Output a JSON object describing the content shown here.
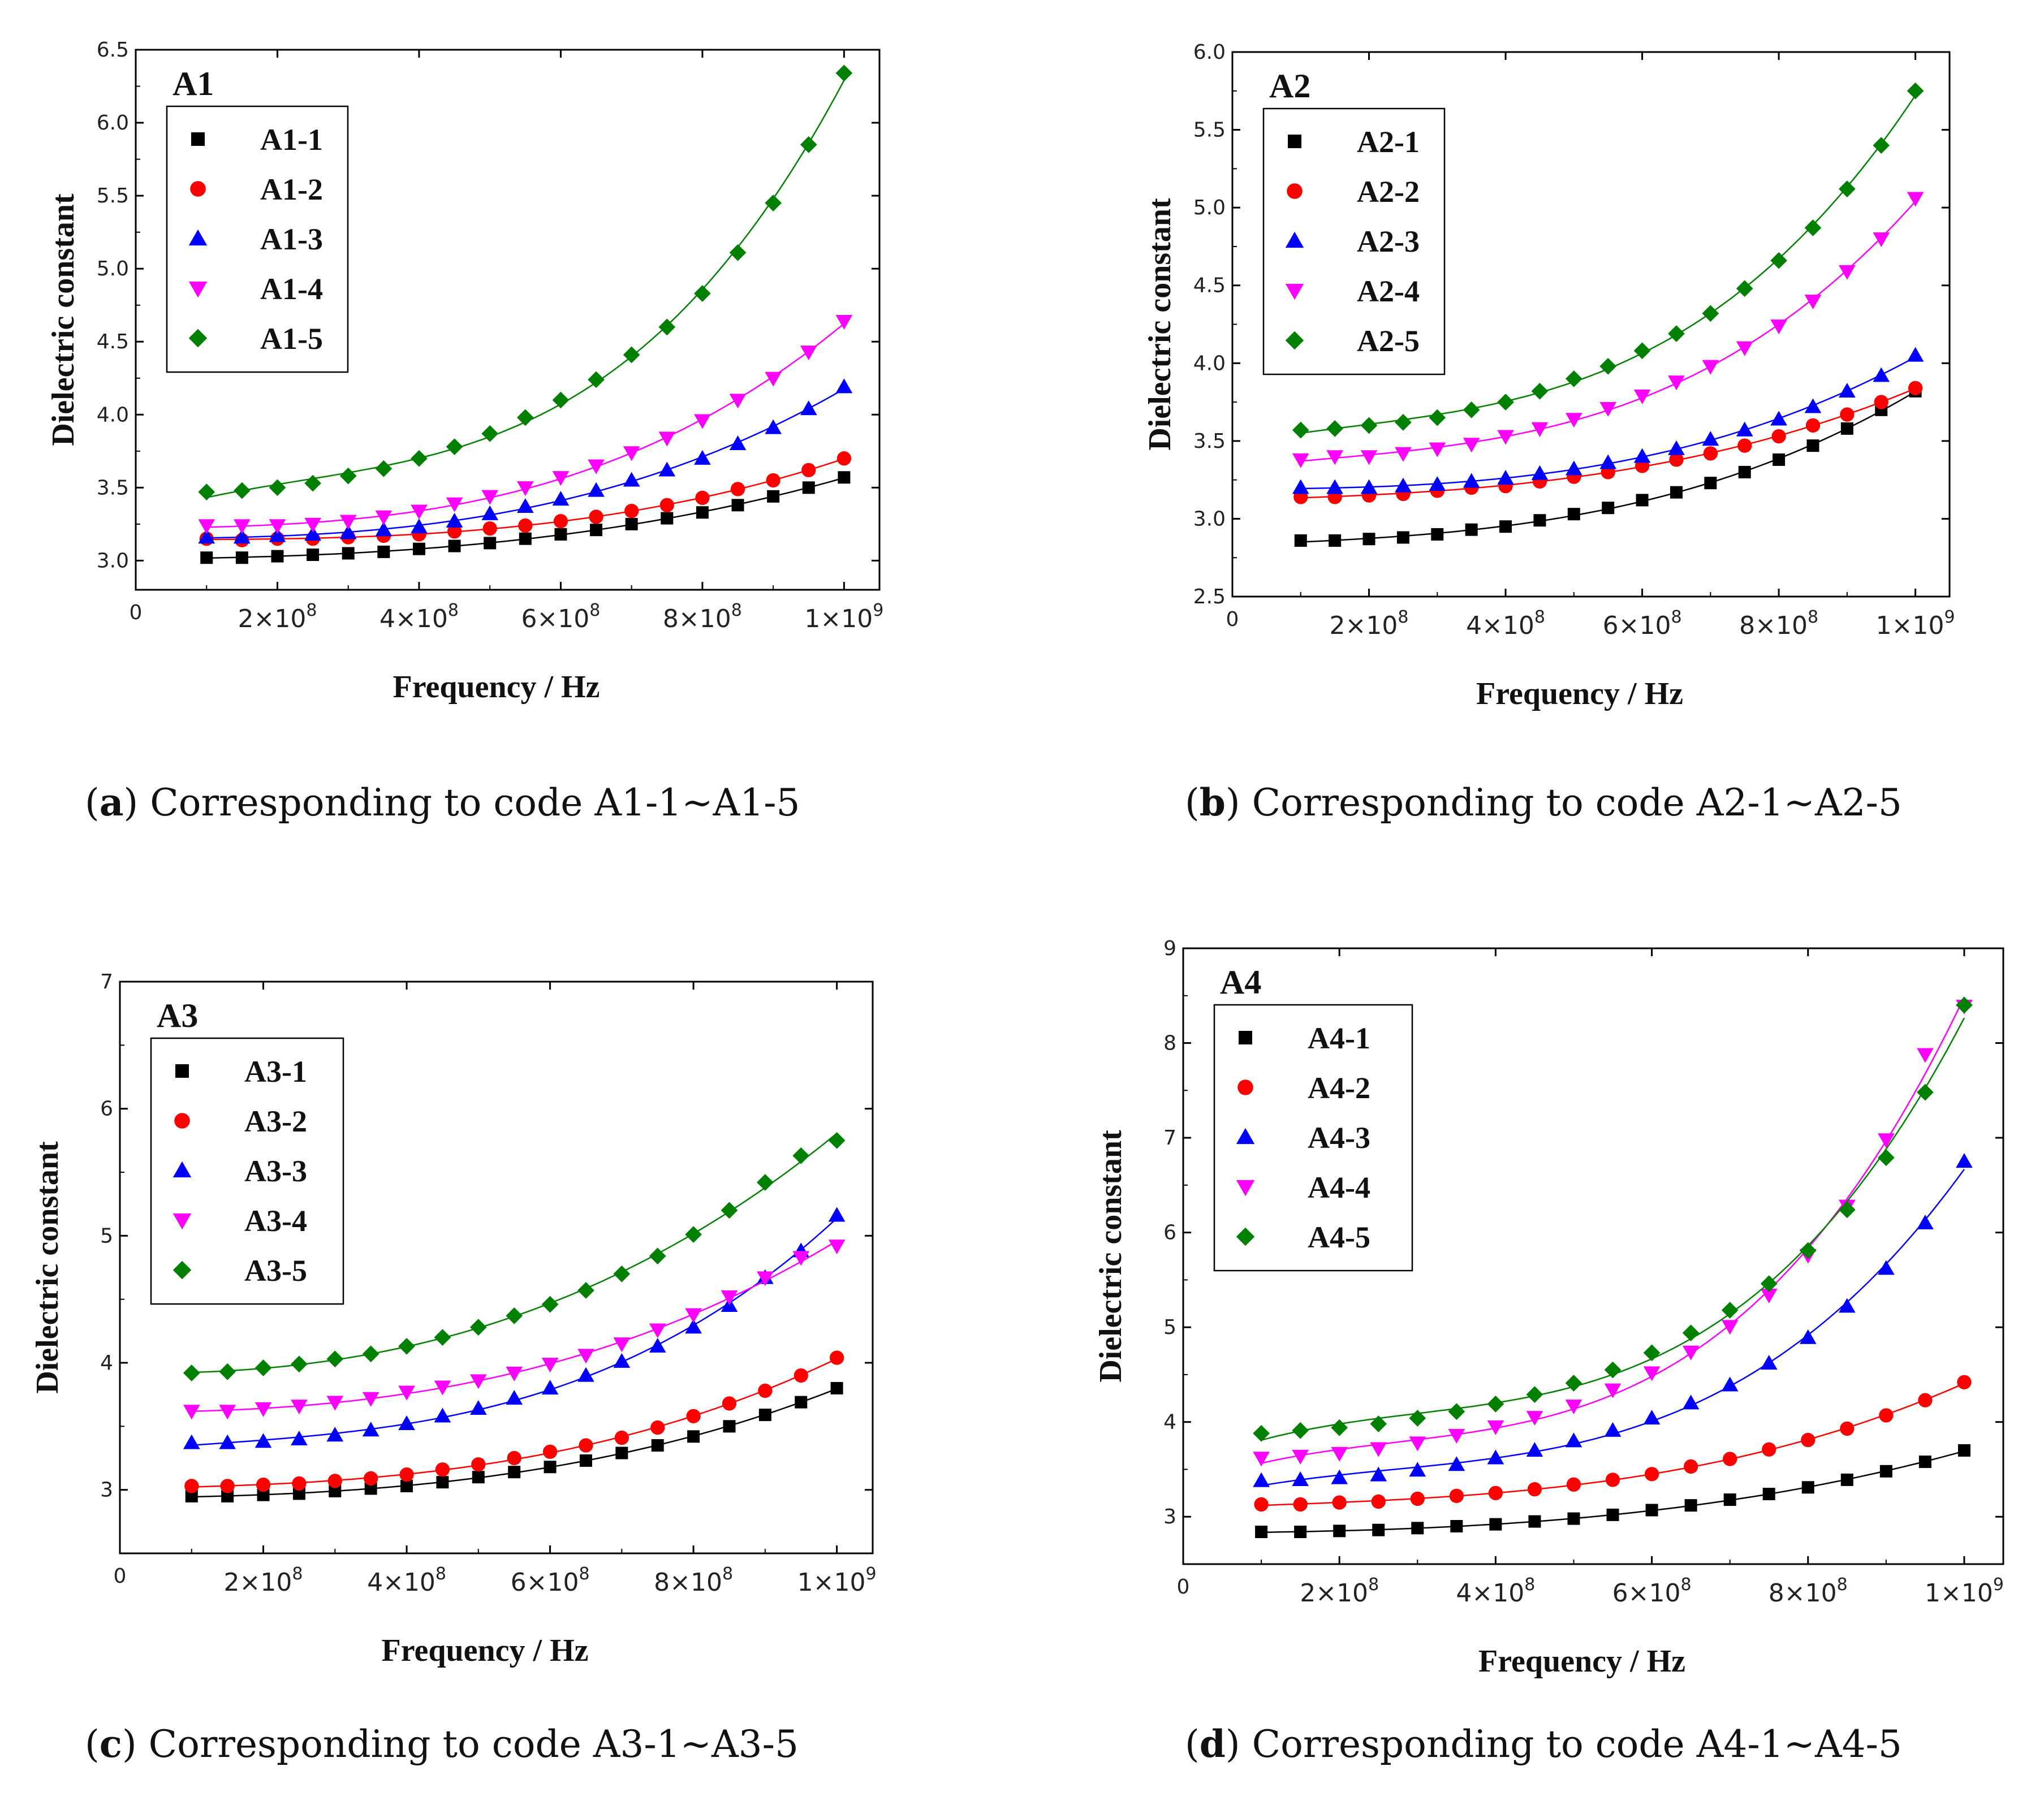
{
  "xlabel": "Frequency / Hz",
  "ylabel": "Dielectric constant",
  "x_zero_label": "0",
  "x_ticks": [
    {
      "value": 200000000,
      "mantissa": "2",
      "exponent": "8"
    },
    {
      "value": 400000000,
      "mantissa": "4",
      "exponent": "8"
    },
    {
      "value": 600000000,
      "mantissa": "6",
      "exponent": "8"
    },
    {
      "value": 800000000,
      "mantissa": "8",
      "exponent": "8"
    },
    {
      "value": 1000000000,
      "mantissa": "1",
      "exponent": "9"
    }
  ],
  "series_colors": [
    "#000000",
    "#ff0000",
    "#0000ff",
    "#ff00ff",
    "#008000"
  ],
  "marker_icons": [
    "square-icon",
    "circle-icon",
    "triangle-up-icon",
    "triangle-down-icon",
    "diamond-icon"
  ],
  "captions": [
    {
      "letter": "a",
      "text": " Corresponding to code A1-1~A1-5"
    },
    {
      "letter": "b",
      "text": " Corresponding to code A2-1~A2-5"
    },
    {
      "letter": "c",
      "text": " Corresponding to code A3-1~A3-5"
    },
    {
      "letter": "d",
      "text": " Corresponding to code A4-1~A4-5"
    }
  ],
  "chart_data": [
    {
      "type": "scatter",
      "title": "A1",
      "xlabel": "Frequency / Hz",
      "ylabel": "Dielectric constant",
      "xlim": [
        0,
        1050000000
      ],
      "ylim": [
        2.8,
        6.5
      ],
      "yticks": [
        3.0,
        3.5,
        4.0,
        4.5,
        5.0,
        5.5,
        6.0,
        6.5
      ],
      "ytick_labels": [
        "3.0",
        "3.5",
        "4.0",
        "4.5",
        "5.0",
        "5.5",
        "6.0",
        "6.5"
      ],
      "legend": "top-left",
      "fit_lines": true,
      "x": [
        100000000,
        150000000,
        200000000,
        250000000,
        300000000,
        350000000,
        400000000,
        450000000,
        500000000,
        550000000,
        600000000,
        650000000,
        700000000,
        750000000,
        800000000,
        850000000,
        900000000,
        950000000,
        1000000000
      ],
      "series": [
        {
          "name": "A1-1",
          "values": [
            3.02,
            3.02,
            3.03,
            3.04,
            3.05,
            3.06,
            3.08,
            3.1,
            3.12,
            3.15,
            3.18,
            3.21,
            3.25,
            3.29,
            3.33,
            3.38,
            3.44,
            3.5,
            3.57
          ]
        },
        {
          "name": "A1-2",
          "values": [
            3.15,
            3.14,
            3.15,
            3.15,
            3.16,
            3.17,
            3.18,
            3.2,
            3.22,
            3.24,
            3.27,
            3.3,
            3.34,
            3.38,
            3.43,
            3.49,
            3.55,
            3.62,
            3.7
          ]
        },
        {
          "name": "A1-3",
          "values": [
            3.16,
            3.16,
            3.17,
            3.18,
            3.19,
            3.21,
            3.23,
            3.27,
            3.32,
            3.37,
            3.42,
            3.48,
            3.55,
            3.62,
            3.7,
            3.8,
            3.91,
            4.04,
            4.19
          ]
        },
        {
          "name": "A1-4",
          "values": [
            3.24,
            3.24,
            3.24,
            3.25,
            3.27,
            3.3,
            3.34,
            3.39,
            3.44,
            3.5,
            3.57,
            3.65,
            3.74,
            3.84,
            3.96,
            4.1,
            4.25,
            4.43,
            4.64
          ]
        },
        {
          "name": "A1-5",
          "values": [
            3.47,
            3.48,
            3.5,
            3.53,
            3.58,
            3.63,
            3.7,
            3.78,
            3.87,
            3.98,
            4.1,
            4.24,
            4.41,
            4.6,
            4.83,
            5.11,
            5.45,
            5.85,
            6.34
          ]
        }
      ]
    },
    {
      "type": "scatter",
      "title": "A2",
      "xlabel": "Frequency / Hz",
      "ylabel": "Dielectric constant",
      "xlim": [
        0,
        1050000000
      ],
      "ylim": [
        2.5,
        6.0
      ],
      "yticks": [
        2.5,
        3.0,
        3.5,
        4.0,
        4.5,
        5.0,
        5.5,
        6.0
      ],
      "ytick_labels": [
        "2.5",
        "3.0",
        "3.5",
        "4.0",
        "4.5",
        "5.0",
        "5.5",
        "6.0"
      ],
      "legend": "top-left",
      "fit_lines": true,
      "x": [
        100000000,
        150000000,
        200000000,
        250000000,
        300000000,
        350000000,
        400000000,
        450000000,
        500000000,
        550000000,
        600000000,
        650000000,
        700000000,
        750000000,
        800000000,
        850000000,
        900000000,
        950000000,
        1000000000
      ],
      "series": [
        {
          "name": "A2-1",
          "values": [
            2.86,
            2.86,
            2.87,
            2.88,
            2.9,
            2.93,
            2.95,
            2.99,
            3.03,
            3.07,
            3.12,
            3.17,
            3.23,
            3.3,
            3.38,
            3.47,
            3.58,
            3.7,
            3.82
          ]
        },
        {
          "name": "A2-2",
          "values": [
            3.14,
            3.14,
            3.15,
            3.16,
            3.18,
            3.2,
            3.21,
            3.24,
            3.27,
            3.3,
            3.34,
            3.38,
            3.42,
            3.47,
            3.53,
            3.6,
            3.67,
            3.75,
            3.84
          ]
        },
        {
          "name": "A2-3",
          "values": [
            3.2,
            3.2,
            3.2,
            3.21,
            3.22,
            3.24,
            3.26,
            3.29,
            3.32,
            3.36,
            3.4,
            3.45,
            3.51,
            3.57,
            3.64,
            3.72,
            3.82,
            3.92,
            4.05
          ]
        },
        {
          "name": "A2-4",
          "values": [
            3.38,
            3.4,
            3.4,
            3.42,
            3.45,
            3.48,
            3.53,
            3.58,
            3.64,
            3.71,
            3.79,
            3.88,
            3.98,
            4.1,
            4.24,
            4.4,
            4.59,
            4.8,
            5.06
          ]
        },
        {
          "name": "A2-5",
          "values": [
            3.57,
            3.58,
            3.6,
            3.62,
            3.65,
            3.7,
            3.75,
            3.82,
            3.9,
            3.98,
            4.08,
            4.19,
            4.32,
            4.48,
            4.66,
            4.87,
            5.12,
            5.4,
            5.75
          ]
        }
      ]
    },
    {
      "type": "scatter",
      "title": "A3",
      "xlabel": "Frequency / Hz",
      "ylabel": "Dielectric constant",
      "xlim": [
        0,
        1050000000
      ],
      "ylim": [
        2.5,
        7.0
      ],
      "yticks": [
        3,
        4,
        5,
        6,
        7
      ],
      "ytick_labels": [
        "3",
        "4",
        "5",
        "6",
        "7"
      ],
      "legend": "top-left",
      "fit_lines": true,
      "x": [
        100000000,
        150000000,
        200000000,
        250000000,
        300000000,
        350000000,
        400000000,
        450000000,
        500000000,
        550000000,
        600000000,
        650000000,
        700000000,
        750000000,
        800000000,
        850000000,
        900000000,
        950000000,
        1000000000
      ],
      "series": [
        {
          "name": "A3-1",
          "values": [
            2.95,
            2.95,
            2.96,
            2.97,
            2.99,
            3.01,
            3.03,
            3.06,
            3.1,
            3.14,
            3.18,
            3.23,
            3.29,
            3.35,
            3.42,
            3.5,
            3.59,
            3.69,
            3.8
          ]
        },
        {
          "name": "A3-2",
          "values": [
            3.03,
            3.03,
            3.04,
            3.05,
            3.07,
            3.09,
            3.12,
            3.16,
            3.2,
            3.25,
            3.3,
            3.35,
            3.41,
            3.49,
            3.58,
            3.68,
            3.78,
            3.9,
            4.04
          ]
        },
        {
          "name": "A3-3",
          "values": [
            3.37,
            3.37,
            3.38,
            3.4,
            3.43,
            3.47,
            3.52,
            3.58,
            3.64,
            3.72,
            3.8,
            3.9,
            4.01,
            4.13,
            4.28,
            4.45,
            4.67,
            4.88,
            5.16
          ]
        },
        {
          "name": "A3-4",
          "values": [
            3.62,
            3.62,
            3.64,
            3.66,
            3.69,
            3.72,
            3.77,
            3.81,
            3.86,
            3.92,
            3.99,
            4.06,
            4.15,
            4.26,
            4.38,
            4.52,
            4.67,
            4.83,
            4.92
          ]
        },
        {
          "name": "A3-5",
          "values": [
            3.92,
            3.93,
            3.96,
            3.99,
            4.03,
            4.07,
            4.13,
            4.2,
            4.28,
            4.37,
            4.46,
            4.57,
            4.7,
            4.84,
            5.01,
            5.2,
            5.42,
            5.63,
            5.75
          ]
        }
      ]
    },
    {
      "type": "scatter",
      "title": "A4",
      "xlabel": "Frequency / Hz",
      "ylabel": "Dielectric constant",
      "xlim": [
        0,
        1050000000
      ],
      "ylim": [
        2.5,
        9.0
      ],
      "yticks": [
        3,
        4,
        5,
        6,
        7,
        8,
        9
      ],
      "ytick_labels": [
        "3",
        "4",
        "5",
        "6",
        "7",
        "8",
        "9"
      ],
      "legend": "top-left",
      "fit_lines": true,
      "x": [
        100000000,
        150000000,
        200000000,
        250000000,
        300000000,
        350000000,
        400000000,
        450000000,
        500000000,
        550000000,
        600000000,
        650000000,
        700000000,
        750000000,
        800000000,
        850000000,
        900000000,
        950000000,
        1000000000
      ],
      "series": [
        {
          "name": "A4-1",
          "values": [
            2.84,
            2.84,
            2.85,
            2.86,
            2.88,
            2.9,
            2.92,
            2.95,
            2.98,
            3.02,
            3.07,
            3.12,
            3.18,
            3.24,
            3.31,
            3.39,
            3.48,
            3.58,
            3.7
          ]
        },
        {
          "name": "A4-2",
          "values": [
            3.13,
            3.13,
            3.15,
            3.16,
            3.19,
            3.22,
            3.25,
            3.29,
            3.34,
            3.39,
            3.45,
            3.53,
            3.61,
            3.71,
            3.81,
            3.93,
            4.07,
            4.23,
            4.42
          ]
        },
        {
          "name": "A4-3",
          "values": [
            3.38,
            3.39,
            3.41,
            3.44,
            3.49,
            3.55,
            3.62,
            3.7,
            3.8,
            3.91,
            4.04,
            4.2,
            4.39,
            4.62,
            4.89,
            5.22,
            5.62,
            6.1,
            6.75
          ]
        },
        {
          "name": "A4-4",
          "values": [
            3.62,
            3.64,
            3.67,
            3.72,
            3.78,
            3.86,
            3.95,
            4.05,
            4.17,
            4.34,
            4.52,
            4.74,
            5.01,
            5.34,
            5.76,
            6.28,
            6.98,
            7.88,
            8.39
          ]
        },
        {
          "name": "A4-5",
          "values": [
            3.88,
            3.91,
            3.94,
            3.98,
            4.04,
            4.11,
            4.19,
            4.29,
            4.41,
            4.55,
            4.73,
            4.94,
            5.18,
            5.46,
            5.81,
            6.24,
            6.79,
            7.48,
            8.4
          ]
        }
      ]
    }
  ]
}
